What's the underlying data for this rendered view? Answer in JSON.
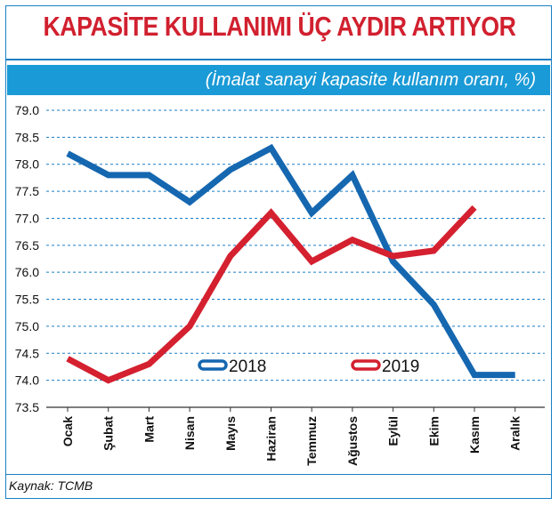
{
  "title": "KAPASİTE KULLANIMI ÜÇ AYDIR ARTIYOR",
  "subtitle": "(İmalat sanayi kapasite kullanım oranı, %)",
  "source": "Kaynak: TCMB",
  "colors": {
    "series_2018": "#1567b0",
    "series_2019": "#d4202f",
    "accent": "#1a9ad6",
    "title": "#d1202f"
  },
  "chart_data": {
    "type": "line",
    "categories": [
      "Ocak",
      "Şubat",
      "Mart",
      "Nisan",
      "Mayıs",
      "Haziran",
      "Temmuz",
      "Ağustos",
      "Eylül",
      "Ekim",
      "Kasım",
      "Aralık"
    ],
    "series": [
      {
        "name": "2018",
        "values": [
          78.2,
          77.8,
          77.8,
          77.3,
          77.9,
          78.3,
          77.1,
          77.8,
          76.2,
          75.4,
          74.1,
          74.1
        ]
      },
      {
        "name": "2019",
        "values": [
          74.4,
          74.0,
          74.3,
          75.0,
          76.3,
          77.1,
          76.2,
          76.6,
          76.3,
          76.4,
          77.2,
          null
        ]
      }
    ],
    "ylim": [
      73.5,
      79.0
    ],
    "yticks": [
      "79.0",
      "78.5",
      "78.0",
      "77.5",
      "77.0",
      "76.5",
      "76.0",
      "75.5",
      "75.0",
      "74.5",
      "74.0",
      "73.5"
    ],
    "grid": true,
    "legend": "inside-bottom-center"
  }
}
